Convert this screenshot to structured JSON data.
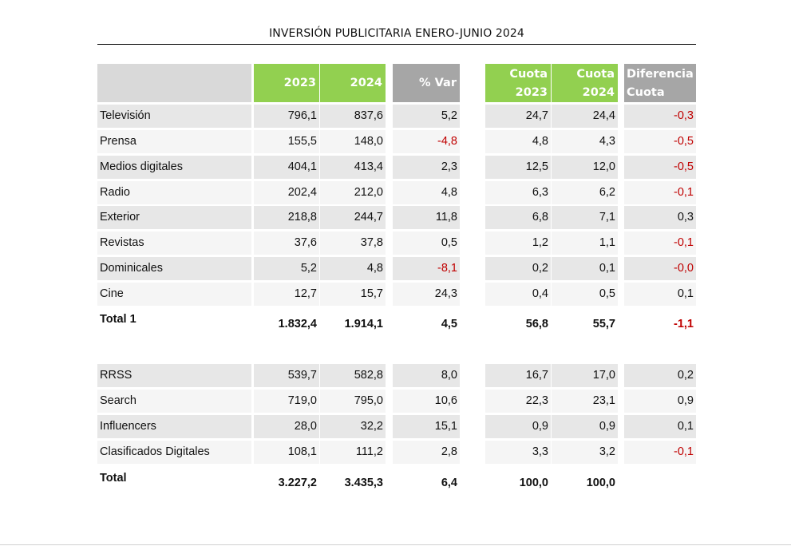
{
  "title": "INVERSIÓN PUBLICITARIA ENERO-JUNIO 2024",
  "header": {
    "y2023": "2023",
    "y2024": "2024",
    "var": "% Var",
    "cuota2023_a": "Cuota",
    "cuota2023_b": "2023",
    "cuota2024_a": "Cuota",
    "cuota2024_b": "2024",
    "dif_a": "Diferencia",
    "dif_b": "Cuota"
  },
  "rows": [
    {
      "label": "Televisión",
      "v2023": "796,1",
      "v2024": "837,6",
      "var": "5,2",
      "c2023": "24,7",
      "c2024": "24,4",
      "dif": "-0,3"
    },
    {
      "label": "Prensa",
      "v2023": "155,5",
      "v2024": "148,0",
      "var": "-4,8",
      "c2023": "4,8",
      "c2024": "4,3",
      "dif": "-0,5"
    },
    {
      "label": "Medios digitales",
      "v2023": "404,1",
      "v2024": "413,4",
      "var": "2,3",
      "c2023": "12,5",
      "c2024": "12,0",
      "dif": "-0,5"
    },
    {
      "label": "Radio",
      "v2023": "202,4",
      "v2024": "212,0",
      "var": "4,8",
      "c2023": "6,3",
      "c2024": "6,2",
      "dif": "-0,1"
    },
    {
      "label": "Exterior",
      "v2023": "218,8",
      "v2024": "244,7",
      "var": "11,8",
      "c2023": "6,8",
      "c2024": "7,1",
      "dif": "0,3"
    },
    {
      "label": "Revistas",
      "v2023": "37,6",
      "v2024": "37,8",
      "var": "0,5",
      "c2023": "1,2",
      "c2024": "1,1",
      "dif": "-0,1"
    },
    {
      "label": "Dominicales",
      "v2023": "5,2",
      "v2024": "4,8",
      "var": "-8,1",
      "c2023": "0,2",
      "c2024": "0,1",
      "dif": "-0,0"
    },
    {
      "label": "Cine",
      "v2023": "12,7",
      "v2024": "15,7",
      "var": "24,3",
      "c2023": "0,4",
      "c2024": "0,5",
      "dif": "0,1"
    }
  ],
  "total1": {
    "label": "Total 1",
    "v2023": "1.832,4",
    "v2024": "1.914,1",
    "var": "4,5",
    "c2023": "56,8",
    "c2024": "55,7",
    "dif": "-1,1"
  },
  "rows2": [
    {
      "label": "RRSS",
      "v2023": "539,7",
      "v2024": "582,8",
      "var": "8,0",
      "c2023": "16,7",
      "c2024": "17,0",
      "dif": "0,2"
    },
    {
      "label": "Search",
      "v2023": "719,0",
      "v2024": "795,0",
      "var": "10,6",
      "c2023": "22,3",
      "c2024": "23,1",
      "dif": "0,9"
    },
    {
      "label": "Influencers",
      "v2023": "28,0",
      "v2024": "32,2",
      "var": "15,1",
      "c2023": "0,9",
      "c2024": "0,9",
      "dif": "0,1"
    },
    {
      "label": "Clasificados Digitales",
      "v2023": "108,1",
      "v2024": "111,2",
      "var": "2,8",
      "c2023": "3,3",
      "c2024": "3,2",
      "dif": "-0,1"
    }
  ],
  "total": {
    "label": "Total",
    "v2023": "3.227,2",
    "v2024": "3.435,3",
    "var": "6,4",
    "c2023": "100,0",
    "c2024": "100,0"
  },
  "colors": {
    "header_green": "#92d050",
    "header_gray": "#a6a6a6",
    "negative": "#c00000",
    "row_shade": "#e7e7e7"
  }
}
